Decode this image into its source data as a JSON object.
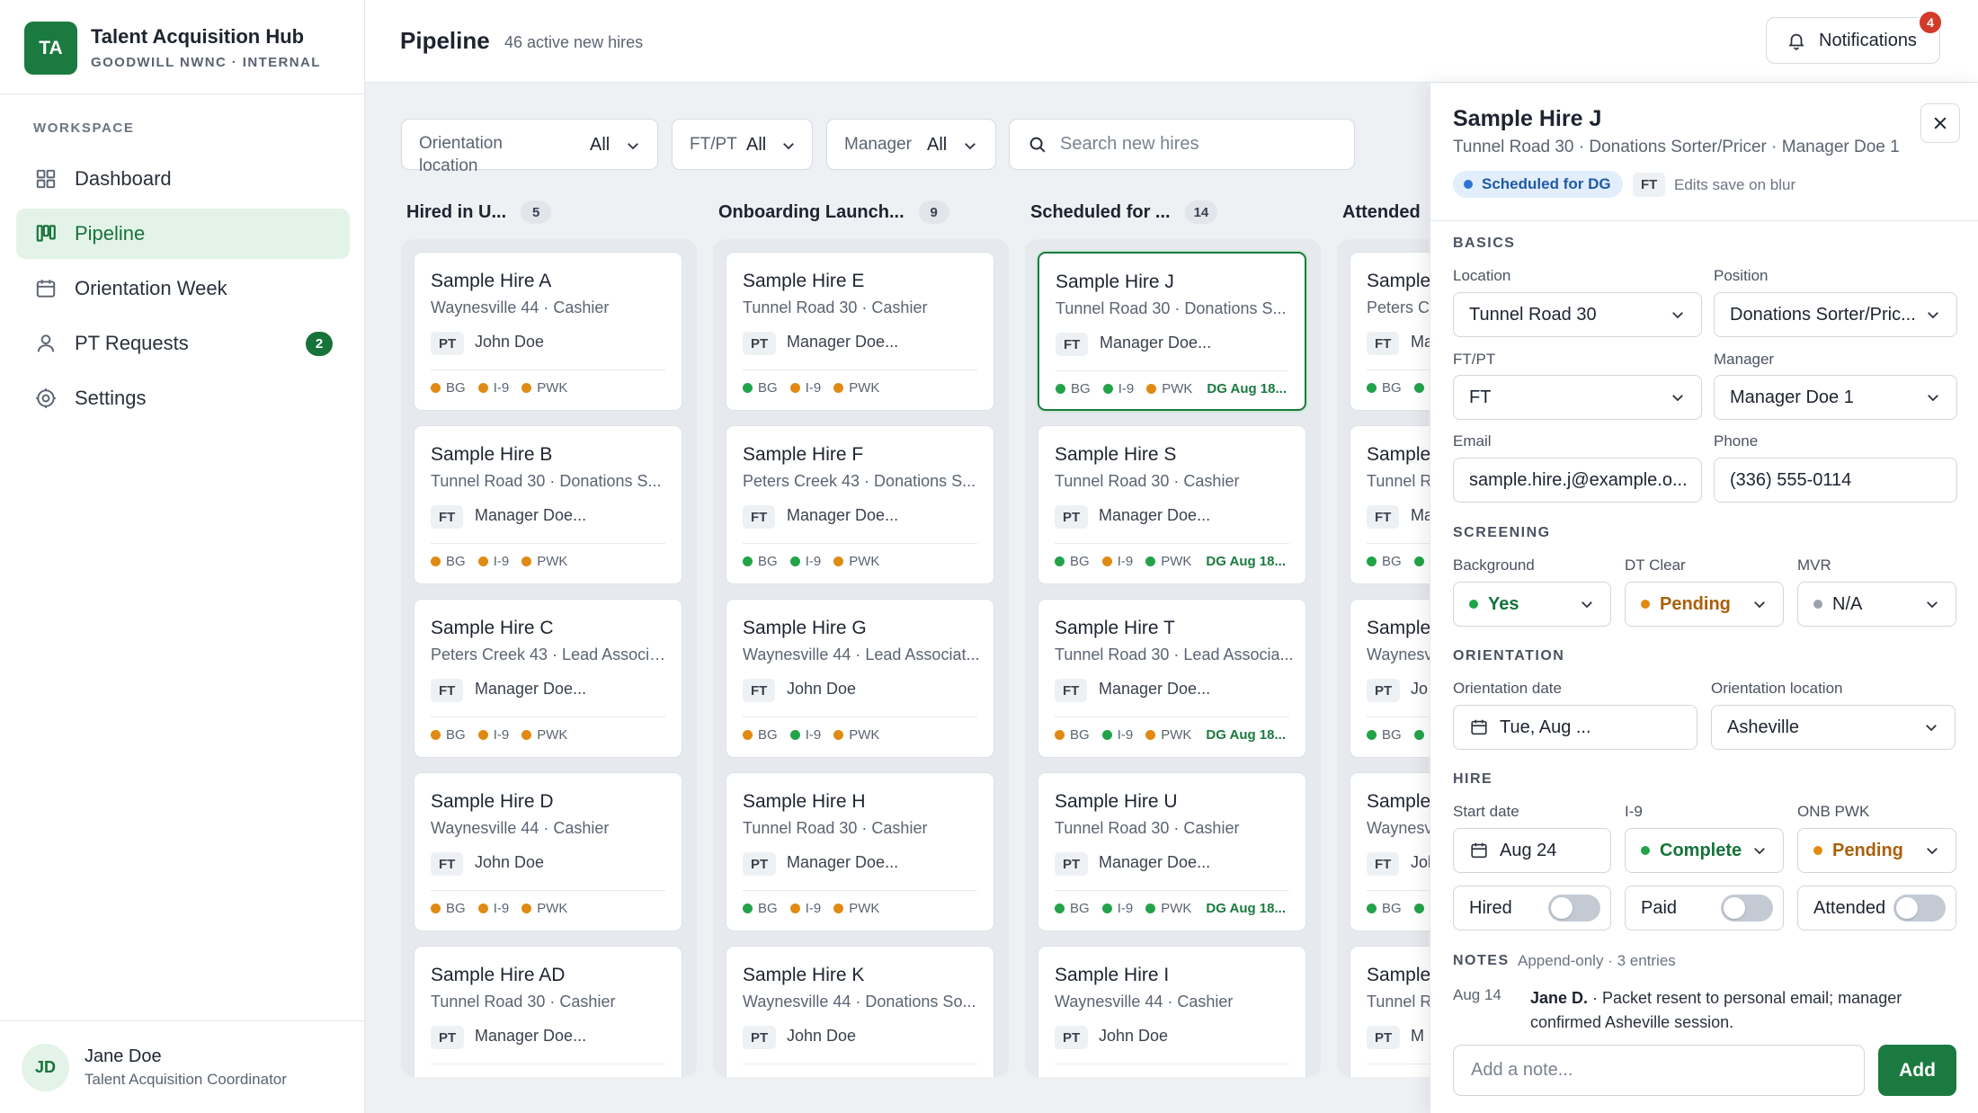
{
  "brand": {
    "logo": "TA",
    "title": "Talent Acquisition Hub",
    "subtitle": "GOODWILL NWNC · INTERNAL"
  },
  "sidebar": {
    "section_label": "WORKSPACE",
    "items": [
      {
        "label": "Dashboard",
        "icon": "grid-icon"
      },
      {
        "label": "Pipeline",
        "icon": "kanban-icon",
        "active": true
      },
      {
        "label": "Orientation Week",
        "icon": "calendar-icon"
      },
      {
        "label": "PT Requests",
        "icon": "person-icon",
        "badge": "2"
      },
      {
        "label": "Settings",
        "icon": "settings-icon"
      }
    ],
    "user": {
      "initials": "JD",
      "name": "Jane Doe",
      "role": "Talent Acquisition Coordinator"
    }
  },
  "header": {
    "title": "Pipeline",
    "subtitle": "46 active new hires",
    "notifications_label": "Notifications",
    "notifications_count": "4"
  },
  "filters": {
    "orientation_label": "Orientation location",
    "orientation_value": "All",
    "ftpt_label": "FT/PT",
    "ftpt_value": "All",
    "manager_label": "Manager",
    "manager_value": "All",
    "search_placeholder": "Search new hires"
  },
  "colors": {
    "accent": "#1b7a3f",
    "green": "#22a34a",
    "orange": "#e08a12",
    "gray": "#9aa2ad",
    "blue": "#2f74d0"
  },
  "columns": [
    {
      "title": "Hired in U...",
      "count": "5",
      "cards": [
        {
          "name": "Sample Hire A",
          "meta": "Waynesville 44 · Cashier",
          "tag": "PT",
          "manager": "John Doe",
          "flags": [
            "orange",
            "orange",
            "orange"
          ],
          "dg": ""
        },
        {
          "name": "Sample Hire B",
          "meta": "Tunnel Road 30 · Donations S...",
          "tag": "FT",
          "manager": "Manager Doe...",
          "flags": [
            "orange",
            "orange",
            "orange"
          ],
          "dg": ""
        },
        {
          "name": "Sample Hire C",
          "meta": "Peters Creek 43 · Lead Associa...",
          "tag": "FT",
          "manager": "Manager Doe...",
          "flags": [
            "orange",
            "orange",
            "orange"
          ],
          "dg": ""
        },
        {
          "name": "Sample Hire D",
          "meta": "Waynesville 44 · Cashier",
          "tag": "FT",
          "manager": "John Doe",
          "flags": [
            "orange",
            "orange",
            "orange"
          ],
          "dg": ""
        },
        {
          "name": "Sample Hire AD",
          "meta": "Tunnel Road 30 · Cashier",
          "tag": "PT",
          "manager": "Manager Doe...",
          "flags": [
            "orange",
            "orange",
            "orange"
          ],
          "dg": ""
        }
      ]
    },
    {
      "title": "Onboarding Launch...",
      "count": "9",
      "cards": [
        {
          "name": "Sample Hire E",
          "meta": "Tunnel Road 30 · Cashier",
          "tag": "PT",
          "manager": "Manager Doe...",
          "flags": [
            "green",
            "orange",
            "orange"
          ],
          "dg": ""
        },
        {
          "name": "Sample Hire F",
          "meta": "Peters Creek 43 · Donations S...",
          "tag": "FT",
          "manager": "Manager Doe...",
          "flags": [
            "green",
            "green",
            "orange"
          ],
          "dg": ""
        },
        {
          "name": "Sample Hire G",
          "meta": "Waynesville 44 · Lead Associat...",
          "tag": "FT",
          "manager": "John Doe",
          "flags": [
            "orange",
            "green",
            "orange"
          ],
          "dg": ""
        },
        {
          "name": "Sample Hire H",
          "meta": "Tunnel Road 30 · Cashier",
          "tag": "PT",
          "manager": "Manager Doe...",
          "flags": [
            "green",
            "orange",
            "orange"
          ],
          "dg": ""
        },
        {
          "name": "Sample Hire K",
          "meta": "Waynesville 44 · Donations So...",
          "tag": "PT",
          "manager": "John Doe",
          "flags": [
            "green",
            "green",
            "orange"
          ],
          "dg": ""
        }
      ]
    },
    {
      "title": "Scheduled for ...",
      "count": "14",
      "cards": [
        {
          "name": "Sample Hire J",
          "meta": "Tunnel Road 30 · Donations S...",
          "tag": "FT",
          "manager": "Manager Doe...",
          "flags": [
            "green",
            "green",
            "orange"
          ],
          "dg": "DG Aug 18...",
          "selected": true
        },
        {
          "name": "Sample Hire S",
          "meta": "Tunnel Road 30 · Cashier",
          "tag": "PT",
          "manager": "Manager Doe...",
          "flags": [
            "green",
            "orange",
            "green"
          ],
          "dg": "DG Aug 18..."
        },
        {
          "name": "Sample Hire T",
          "meta": "Tunnel Road 30 · Lead Associa...",
          "tag": "FT",
          "manager": "Manager Doe...",
          "flags": [
            "orange",
            "green",
            "orange"
          ],
          "dg": "DG Aug 18..."
        },
        {
          "name": "Sample Hire U",
          "meta": "Tunnel Road 30 · Cashier",
          "tag": "PT",
          "manager": "Manager Doe...",
          "flags": [
            "green",
            "green",
            "green"
          ],
          "dg": "DG Aug 18..."
        },
        {
          "name": "Sample Hire I",
          "meta": "Waynesville 44 · Cashier",
          "tag": "PT",
          "manager": "John Doe",
          "flags": [
            "green",
            "green",
            "green"
          ],
          "dg": ""
        }
      ]
    },
    {
      "title": "Attended",
      "count": "",
      "cards": [
        {
          "name": "Sample",
          "meta": "Peters C",
          "tag": "FT",
          "manager": "Ma",
          "flags": [
            "green",
            "green",
            "green"
          ],
          "dg": ""
        },
        {
          "name": "Sample",
          "meta": "Tunnel R",
          "tag": "FT",
          "manager": "Ma",
          "flags": [
            "green",
            "green",
            "green"
          ],
          "dg": ""
        },
        {
          "name": "Sample",
          "meta": "Waynesv",
          "tag": "PT",
          "manager": "Jo",
          "flags": [
            "green",
            "green",
            "green"
          ],
          "dg": ""
        },
        {
          "name": "Sample",
          "meta": "Waynesv",
          "tag": "FT",
          "manager": "Jol",
          "flags": [
            "green",
            "green",
            "green"
          ],
          "dg": ""
        },
        {
          "name": "Sample",
          "meta": "Tunnel R",
          "tag": "PT",
          "manager": "M",
          "flags": [
            "green",
            "green",
            "green"
          ],
          "dg": ""
        }
      ]
    }
  ],
  "flag_labels": [
    "BG",
    "I-9",
    "PWK"
  ],
  "panel": {
    "name": "Sample Hire J",
    "subtitle": "Tunnel Road 30 · Donations Sorter/Pricer · Manager Doe 1",
    "status": "Scheduled for DG",
    "tag": "FT",
    "save_hint": "Edits save on blur",
    "basics_label": "BASICS",
    "location_label": "Location",
    "location_value": "Tunnel Road 30",
    "position_label": "Position",
    "position_value": "Donations Sorter/Pric...",
    "ftpt_label": "FT/PT",
    "ftpt_value": "FT",
    "manager_label": "Manager",
    "manager_value": "Manager Doe 1",
    "email_label": "Email",
    "email_value": "sample.hire.j@example.o...",
    "phone_label": "Phone",
    "phone_value": "(336) 555-0114",
    "screening_label": "SCREENING",
    "background_label": "Background",
    "background_value": "Yes",
    "dtclear_label": "DT Clear",
    "dtclear_value": "Pending",
    "mvr_label": "MVR",
    "mvr_value": "N/A",
    "orientation_label": "ORIENTATION",
    "odate_label": "Orientation date",
    "odate_value": "Tue, Aug ...",
    "oloc_label": "Orientation location",
    "oloc_value": "Asheville",
    "hire_label": "HIRE",
    "start_label": "Start date",
    "start_value": "Aug 24",
    "i9_label": "I-9",
    "i9_value": "Complete",
    "onb_label": "ONB PWK",
    "onb_value": "Pending",
    "hired_label": "Hired",
    "paid_label": "Paid",
    "attended_label": "Attended",
    "hired_on": false,
    "paid_on": false,
    "attended_on": false,
    "notes_label": "NOTES",
    "notes_sub": "Append-only · 3 entries",
    "note_date": "Aug 14",
    "note_author": "Jane D.",
    "note_text": " · Packet resent to personal email; manager confirmed Asheville session.",
    "note_placeholder": "Add a note...",
    "add_label": "Add"
  }
}
